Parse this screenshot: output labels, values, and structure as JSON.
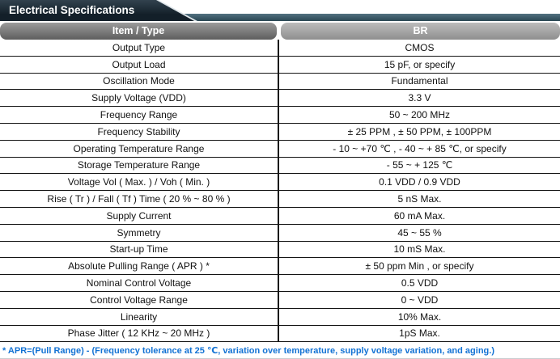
{
  "title": "Electrical Specifications",
  "table": {
    "headers": [
      "Item / Type",
      "BR"
    ],
    "rows": [
      {
        "item": "Output Type",
        "value": "CMOS"
      },
      {
        "item": "Output Load",
        "value": "15 pF, or specify"
      },
      {
        "item": "Oscillation Mode",
        "value": "Fundamental"
      },
      {
        "item": "Supply Voltage (VDD)",
        "value": "3.3 V"
      },
      {
        "item": "Frequency Range",
        "value": "50 ~ 200 MHz"
      },
      {
        "item": "Frequency Stability",
        "value": "± 25 PPM , ± 50 PPM, ± 100PPM"
      },
      {
        "item": "Operating Temperature Range",
        "value": "- 10 ~ +70 ℃ , - 40 ~ + 85 ℃, or specify"
      },
      {
        "item": "Storage Temperature Range",
        "value": "- 55 ~ + 125 ℃"
      },
      {
        "item": "Voltage Vol ( Max. ) / Voh ( Min. )",
        "value": "0.1 VDD / 0.9 VDD"
      },
      {
        "item": "Rise ( Tr ) / Fall ( Tf ) Time ( 20 % ~ 80 % )",
        "value": "5 nS Max."
      },
      {
        "item": "Supply Current",
        "value": "60 mA Max."
      },
      {
        "item": "Symmetry",
        "value": "45 ~ 55 %"
      },
      {
        "item": "Start-up Time",
        "value": "10 mS Max."
      },
      {
        "item": "Absolute Pulling Range ( APR ) *",
        "value": "± 50 ppm Min , or specify"
      },
      {
        "item": "Nominal Control Voltage",
        "value": "0.5 VDD"
      },
      {
        "item": "Control Voltage Range",
        "value": "0 ~ VDD"
      },
      {
        "item": "Linearity",
        "value": "10% Max."
      },
      {
        "item": "Phase Jitter ( 12 KHz ~ 20 MHz )",
        "value": "1pS Max."
      }
    ]
  },
  "footnote": "* APR=(Pull Range) - (Frequency tolerance at 25 ℃, variation over temperature, supply voltage variation, and aging.)",
  "colors": {
    "title_bg": "#131f29",
    "title_top": "#32424e",
    "strip_top": "#537181",
    "strip_bottom": "#2a4754",
    "header_item": "#5e5e5e",
    "header_br": "#8f8f8f",
    "border": "#141414",
    "footnote_blue": "#1272d4"
  }
}
